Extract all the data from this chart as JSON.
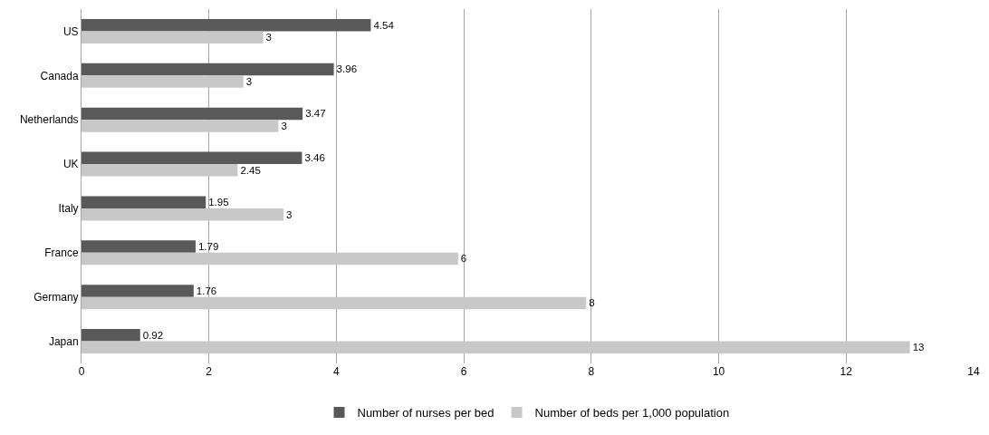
{
  "chart_data": {
    "type": "bar",
    "orientation": "horizontal",
    "categories": [
      "US",
      "Canada",
      "Netherlands",
      "UK",
      "Italy",
      "France",
      "Germany",
      "Japan"
    ],
    "series": [
      {
        "name": "Number of nurses per bed",
        "color": "#595959",
        "values": [
          4.54,
          3.96,
          3.47,
          3.46,
          1.95,
          1.79,
          1.76,
          0.92
        ],
        "value_labels": [
          "4.54",
          "3.96",
          "3.47",
          "3.46",
          "1.95",
          "1.79",
          "1.76",
          "0.92"
        ]
      },
      {
        "name": "Number of beds per 1,000 population",
        "color": "#c8c8c8",
        "values": [
          2.85,
          2.54,
          3.09,
          2.45,
          3.17,
          5.91,
          7.92,
          13.0
        ],
        "value_labels": [
          "3",
          "3",
          "3",
          "2.45",
          "3",
          "6",
          "8",
          "13"
        ]
      }
    ],
    "xlim": [
      0,
      14
    ],
    "xticks": [
      0,
      2,
      4,
      6,
      8,
      10,
      12,
      14
    ],
    "grid": "x",
    "legend": "bottom"
  }
}
